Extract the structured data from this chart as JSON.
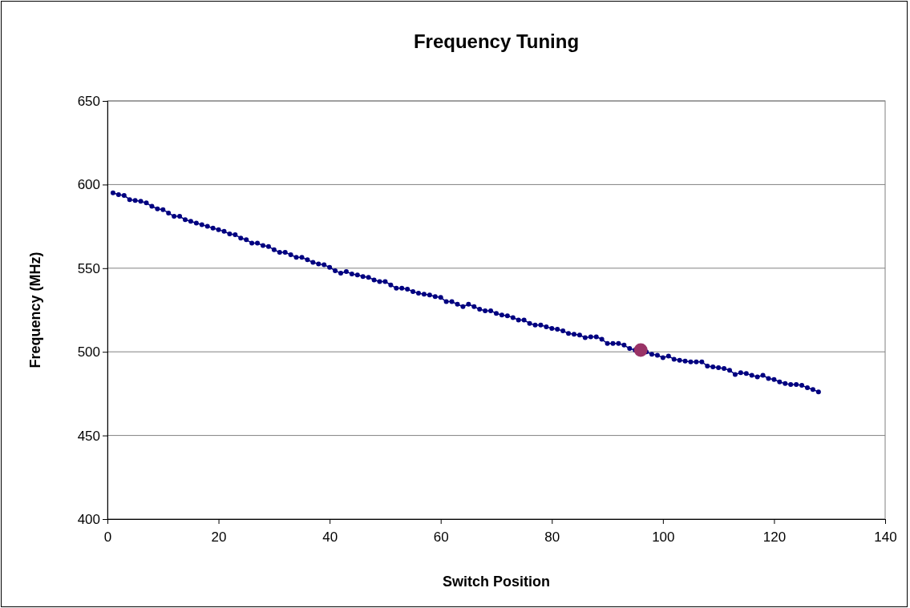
{
  "chart_data": {
    "type": "line",
    "title": "Frequency Tuning",
    "xlabel": "Switch Position",
    "ylabel": "Frequency (MHz)",
    "xlim": [
      0,
      140
    ],
    "xticks": [
      0,
      20,
      40,
      60,
      80,
      100,
      120,
      140
    ],
    "ylim": [
      400,
      650
    ],
    "yticks": [
      400,
      450,
      500,
      550,
      600,
      650
    ],
    "grid": "y",
    "marker": "circle",
    "line_style": "solid",
    "series": [
      {
        "color": "#000080",
        "x": [
          1,
          2,
          3,
          4,
          5,
          6,
          7,
          8,
          9,
          10,
          11,
          12,
          13,
          14,
          15,
          16,
          17,
          18,
          19,
          20,
          21,
          22,
          23,
          24,
          25,
          26,
          27,
          28,
          29,
          30,
          31,
          32,
          33,
          34,
          35,
          36,
          37,
          38,
          39,
          40,
          41,
          42,
          43,
          44,
          45,
          46,
          47,
          48,
          49,
          50,
          51,
          52,
          53,
          54,
          55,
          56,
          57,
          58,
          59,
          60,
          61,
          62,
          63,
          64,
          65,
          66,
          67,
          68,
          69,
          70,
          71,
          72,
          73,
          74,
          75,
          76,
          77,
          78,
          79,
          80,
          81,
          82,
          83,
          84,
          85,
          86,
          87,
          88,
          89,
          90,
          91,
          92,
          93,
          94,
          95,
          96,
          97,
          98,
          99,
          100,
          101,
          102,
          103,
          104,
          105,
          106,
          107,
          108,
          109,
          110,
          111,
          112,
          113,
          114,
          115,
          116,
          117,
          118,
          119,
          120,
          121,
          122,
          123,
          124,
          125,
          126,
          127,
          128
        ],
        "values": [
          595,
          594,
          593.5,
          591,
          590.5,
          590,
          589,
          587,
          585.5,
          585,
          583,
          581,
          581,
          579,
          578,
          577,
          576,
          575,
          574,
          573,
          572,
          570.5,
          570,
          568,
          567,
          565,
          565,
          563.5,
          563,
          561,
          559.5,
          559.5,
          558,
          556.5,
          556.5,
          555,
          553.5,
          552.5,
          552,
          550.5,
          548.5,
          547,
          548,
          546.5,
          546,
          545,
          544.5,
          543,
          542,
          542,
          540,
          538,
          538,
          537.5,
          536,
          535,
          534.5,
          534,
          533,
          532.5,
          530,
          530,
          528.5,
          527,
          528.5,
          527,
          525.5,
          524.5,
          524.5,
          523,
          522,
          521.5,
          520.5,
          519,
          519,
          517,
          516,
          516,
          515,
          514,
          513.5,
          512.5,
          511,
          510.5,
          510,
          508.5,
          509,
          509,
          507.5,
          505,
          505,
          505,
          504,
          502,
          501,
          null,
          500,
          498.5,
          498,
          496.5,
          497.5,
          495.5,
          495,
          494.5,
          494,
          494,
          494,
          491.5,
          491,
          490.5,
          490,
          489,
          486.5,
          487.5,
          487,
          486,
          485,
          486,
          484,
          483.5,
          482,
          481,
          480.5,
          480.5,
          480,
          478.5,
          477.5,
          476
        ]
      },
      {
        "type": "scatter",
        "color": "#993366",
        "x": [
          96
        ],
        "values": [
          501
        ]
      }
    ]
  }
}
